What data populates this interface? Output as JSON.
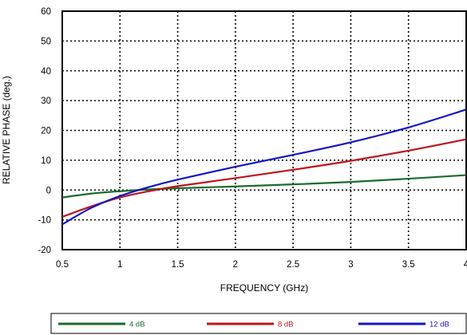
{
  "chart_data": {
    "type": "line",
    "title": "",
    "xlabel": "FREQUENCY (GHz)",
    "ylabel": "RELATIVE PHASE (deg.)",
    "xlim": [
      0.5,
      4
    ],
    "ylim": [
      -20,
      60
    ],
    "xticks": [
      "0.5",
      "1",
      "1.5",
      "2",
      "2.5",
      "3",
      "3.5",
      "4"
    ],
    "yticks": [
      "-20",
      "-10",
      "0",
      "10",
      "20",
      "30",
      "40",
      "50",
      "60"
    ],
    "grid": true,
    "legend_position": "bottom",
    "series": [
      {
        "name": "4 dB",
        "color": "#1b6b2e",
        "x": [
          0.5,
          0.75,
          1.0,
          1.25,
          1.5,
          2.0,
          2.5,
          3.0,
          3.5,
          4.0
        ],
        "y": [
          -2.5,
          -1.2,
          -0.4,
          0.2,
          0.6,
          1.2,
          1.9,
          2.7,
          3.8,
          5.0
        ]
      },
      {
        "name": "8 dB",
        "color": "#c0141c",
        "x": [
          0.5,
          0.75,
          1.0,
          1.25,
          1.5,
          2.0,
          2.5,
          3.0,
          3.5,
          4.0
        ],
        "y": [
          -9.0,
          -5.5,
          -2.5,
          -0.4,
          1.3,
          4.0,
          6.8,
          9.8,
          13.2,
          17.0
        ]
      },
      {
        "name": "12 dB",
        "color": "#1414c8",
        "x": [
          0.5,
          0.75,
          1.0,
          1.25,
          1.5,
          2.0,
          2.5,
          3.0,
          3.5,
          4.0
        ],
        "y": [
          -11.5,
          -6.0,
          -2.0,
          1.0,
          3.5,
          7.8,
          11.8,
          16.0,
          21.0,
          27.0
        ]
      }
    ]
  }
}
